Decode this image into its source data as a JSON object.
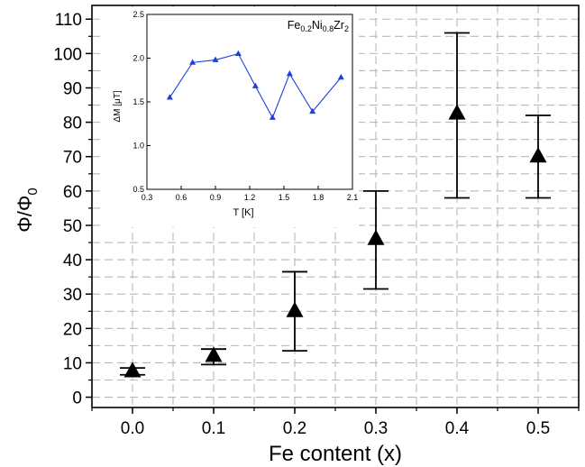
{
  "chart_data": [
    {
      "type": "scatter",
      "title": "",
      "xlabel": "Fe content (x)",
      "ylabel": "Φ/Φ0",
      "ylabel_main": "Φ/Φ",
      "ylabel_sub": "0",
      "xlim": [
        -0.05,
        0.55
      ],
      "ylim": [
        -3,
        114
      ],
      "xticks": [
        0.0,
        0.1,
        0.2,
        0.3,
        0.4,
        0.5
      ],
      "xtick_labels": [
        "0.0",
        "0.1",
        "0.2",
        "0.3",
        "0.4",
        "0.5"
      ],
      "yticks": [
        0,
        10,
        20,
        30,
        40,
        50,
        60,
        70,
        80,
        90,
        100,
        110
      ],
      "ytick_labels": [
        "0",
        "10",
        "20",
        "30",
        "40",
        "50",
        "60",
        "70",
        "80",
        "90",
        "100",
        "110"
      ],
      "grid": true,
      "marker": "filled-triangle",
      "color": "#000000",
      "points": [
        {
          "x": 0.0,
          "y": 7.5,
          "err_low": 6.5,
          "err_high": 8.5
        },
        {
          "x": 0.1,
          "y": 12.0,
          "err_low": 9.5,
          "err_high": 14.0
        },
        {
          "x": 0.2,
          "y": 25.0,
          "err_low": 13.5,
          "err_high": 36.5
        },
        {
          "x": 0.3,
          "y": 46.0,
          "err_low": 31.5,
          "err_high": 60.0
        },
        {
          "x": 0.4,
          "y": 82.5,
          "err_low": 58.0,
          "err_high": 106.0
        },
        {
          "x": 0.5,
          "y": 70.0,
          "err_low": 58.0,
          "err_high": 82.0
        }
      ]
    },
    {
      "type": "line",
      "title": "Fe0.2Ni0.8Zr2",
      "label_parts": [
        {
          "text": "Fe",
          "sub": false
        },
        {
          "text": "0.2",
          "sub": true
        },
        {
          "text": "Ni",
          "sub": false
        },
        {
          "text": "0.8",
          "sub": true
        },
        {
          "text": "Zr",
          "sub": false
        },
        {
          "text": "2",
          "sub": true
        }
      ],
      "xlabel": "T [K]",
      "ylabel": "ΔM [μT]",
      "xlim": [
        0.3,
        2.1
      ],
      "ylim": [
        0.5,
        2.5
      ],
      "xticks": [
        0.3,
        0.6,
        0.9,
        1.2,
        1.5,
        1.8,
        2.1
      ],
      "xtick_labels": [
        "0.3",
        "0.6",
        "0.9",
        "1.2",
        "1.5",
        "1.8",
        "2.1"
      ],
      "yticks": [
        0.5,
        1.0,
        1.5,
        2.0,
        2.5
      ],
      "ytick_labels": [
        "0.5",
        "1.0",
        "1.5",
        "2.0",
        "2.5"
      ],
      "grid": false,
      "marker": "filled-triangle",
      "color": "#1f3fdc",
      "x": [
        0.5,
        0.7,
        0.9,
        1.1,
        1.25,
        1.4,
        1.55,
        1.75,
        2.0
      ],
      "y": [
        1.55,
        1.95,
        1.98,
        2.05,
        1.68,
        1.32,
        1.82,
        1.39,
        1.78
      ]
    }
  ]
}
